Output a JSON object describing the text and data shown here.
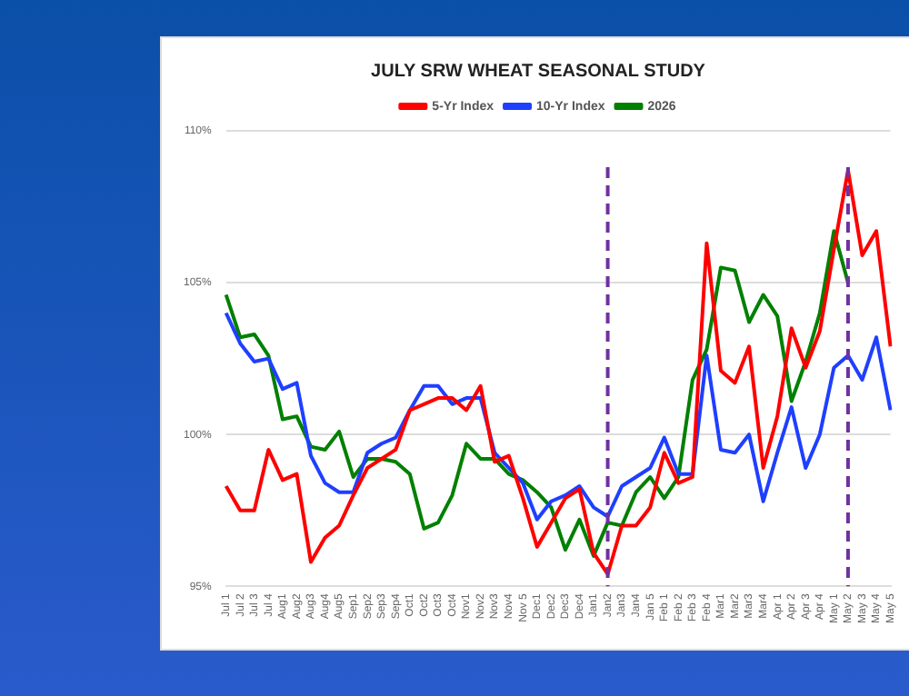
{
  "chart_data": {
    "type": "line",
    "title": "JULY SRW WHEAT SEASONAL STUDY",
    "categories": [
      "Jul 1",
      "Jul 2",
      "Jul 3",
      "Jul 4",
      "Aug1",
      "Aug2",
      "Aug3",
      "Aug4",
      "Aug5",
      "Sep1",
      "Sep2",
      "Sep3",
      "Sep4",
      "Oct1",
      "Oct2",
      "Oct3",
      "Oct4",
      "Nov1",
      "Nov2",
      "Nov3",
      "Nov4",
      "Nov 5",
      "Dec1",
      "Dec2",
      "Dec3",
      "Dec4",
      "Jan1",
      "Jan2",
      "Jan3",
      "Jan4",
      "Jan 5",
      "Feb 1",
      "Feb 2",
      "Feb 3",
      "Feb 4",
      "Mar1",
      "Mar2",
      "Mar3",
      "Mar4",
      "Apr 1",
      "Apr 2",
      "Apr 3",
      "Apr 4",
      "May 1",
      "May 2",
      "May 3",
      "May 4",
      "May 5"
    ],
    "series": [
      {
        "name": "5-Yr Index",
        "color": "#ff0000",
        "values": [
          98.3,
          97.5,
          97.5,
          99.5,
          98.5,
          98.7,
          95.8,
          96.6,
          97.0,
          98.0,
          98.9,
          99.2,
          99.5,
          100.8,
          101.0,
          101.2,
          101.2,
          100.8,
          101.6,
          99.1,
          99.3,
          97.9,
          96.3,
          97.1,
          97.9,
          98.2,
          96.1,
          95.4,
          97.0,
          97.0,
          97.6,
          99.4,
          98.4,
          98.6,
          106.3,
          102.1,
          101.7,
          102.9,
          98.9,
          100.6,
          103.5,
          102.2,
          103.4,
          106.1,
          108.7,
          105.9,
          106.7,
          102.9
        ]
      },
      {
        "name": "10-Yr Index",
        "color": "#1f3fff",
        "values": [
          104.0,
          103.0,
          102.4,
          102.5,
          101.5,
          101.7,
          99.3,
          98.4,
          98.1,
          98.1,
          99.4,
          99.7,
          99.9,
          100.8,
          101.6,
          101.6,
          101.0,
          101.2,
          101.2,
          99.4,
          98.9,
          98.4,
          97.2,
          97.8,
          98.0,
          98.3,
          97.6,
          97.3,
          98.3,
          98.6,
          98.9,
          99.9,
          98.7,
          98.7,
          102.6,
          99.5,
          99.4,
          100.0,
          97.8,
          99.4,
          100.9,
          98.9,
          100.0,
          102.2,
          102.6,
          101.8,
          103.2,
          100.8
        ]
      },
      {
        "name": "2026",
        "color": "#008000",
        "values": [
          104.6,
          103.2,
          103.3,
          102.6,
          100.5,
          100.6,
          99.6,
          99.5,
          100.1,
          98.6,
          99.2,
          99.2,
          99.1,
          98.7,
          96.9,
          97.1,
          98.0,
          99.7,
          99.2,
          99.2,
          98.7,
          98.5,
          98.1,
          97.6,
          96.2,
          97.2,
          96.0,
          97.1,
          97.0,
          98.1,
          98.6,
          97.9,
          98.6,
          101.8,
          102.8,
          105.5,
          105.4,
          103.7,
          104.6,
          103.9,
          101.1,
          102.4,
          104.0,
          106.7,
          105.0,
          null,
          null,
          null
        ]
      }
    ],
    "ylim": [
      95,
      110
    ],
    "yticks": [
      {
        "value": 95,
        "label": "95%"
      },
      {
        "value": 100,
        "label": "100%"
      },
      {
        "value": 105,
        "label": "105%"
      },
      {
        "value": 110,
        "label": "110%"
      }
    ],
    "ref_lines": [
      {
        "axis": "x",
        "value": "Jan2",
        "color": "#7030a0",
        "line_style": "dashed"
      },
      {
        "axis": "x",
        "value": "May 2",
        "color": "#7030a0",
        "line_style": "dashed"
      }
    ],
    "grid": "y",
    "legend": "top",
    "marker": "none",
    "line_style": "solid"
  }
}
